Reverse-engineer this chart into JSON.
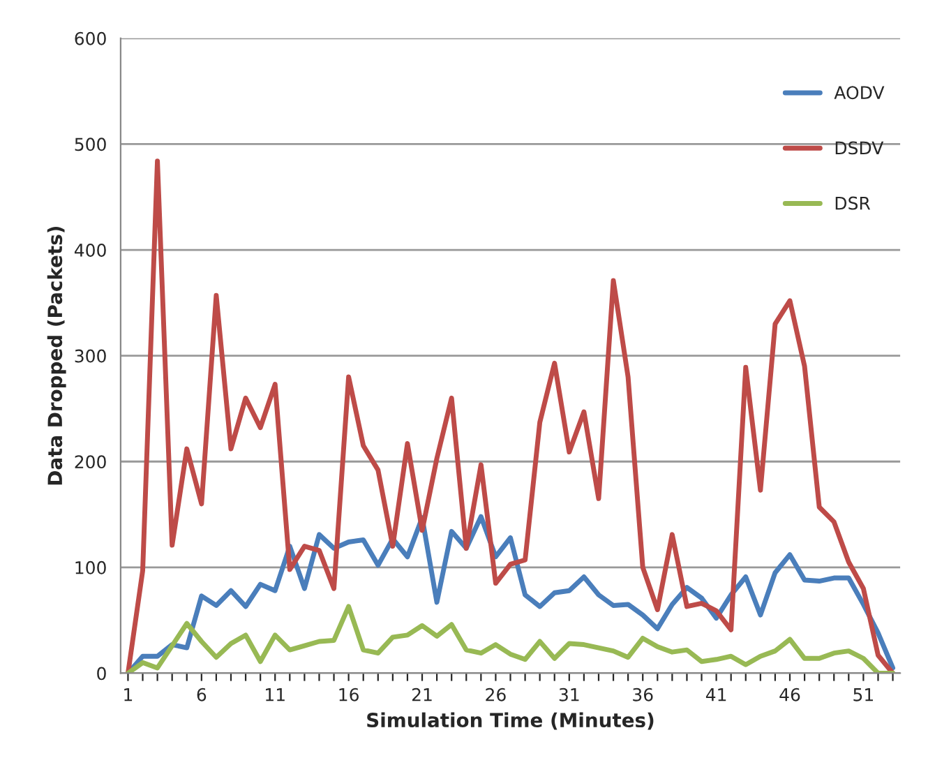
{
  "chart_data": {
    "type": "line",
    "xlabel": "Simulation Time (Minutes)",
    "ylabel": "Data Dropped (Packets)",
    "categories": [
      "1",
      null,
      null,
      null,
      null,
      "6",
      null,
      null,
      null,
      null,
      "11",
      null,
      null,
      null,
      null,
      "16",
      null,
      null,
      null,
      null,
      "21",
      null,
      null,
      null,
      null,
      "26",
      null,
      null,
      null,
      null,
      "31",
      null,
      null,
      null,
      null,
      "36",
      null,
      null,
      null,
      null,
      "41",
      null,
      null,
      null,
      null,
      "46",
      null,
      null,
      null,
      null,
      "51",
      null,
      null
    ],
    "ylim": [
      0,
      600
    ],
    "yticks": [
      0,
      100,
      200,
      300,
      400,
      500,
      600
    ],
    "grid": "y",
    "legend": "top right",
    "marker": "none",
    "line_style": "solid",
    "series": [
      {
        "name": "AODV",
        "color": "#4a7ebb",
        "values": [
          0,
          16,
          16,
          27,
          24,
          73,
          64,
          78,
          63,
          84,
          78,
          120,
          80,
          131,
          118,
          124,
          126,
          102,
          127,
          110,
          147,
          67,
          134,
          118,
          148,
          110,
          128,
          74,
          63,
          76,
          78,
          91,
          74,
          64,
          65,
          55,
          42,
          65,
          81,
          71,
          52,
          74,
          91,
          55,
          95,
          112,
          88,
          87,
          90,
          90,
          65,
          38,
          5
        ]
      },
      {
        "name": "DSDV",
        "color": "#be4b48",
        "values": [
          0,
          97,
          484,
          121,
          212,
          160,
          357,
          212,
          260,
          232,
          273,
          98,
          120,
          116,
          80,
          280,
          215,
          192,
          120,
          217,
          135,
          203,
          260,
          118,
          197,
          85,
          103,
          107,
          237,
          293,
          209,
          247,
          165,
          371,
          280,
          100,
          60,
          131,
          63,
          66,
          59,
          41,
          289,
          173,
          330,
          352,
          290,
          157,
          143,
          105,
          80,
          17,
          0
        ]
      },
      {
        "name": "DSR",
        "color": "#98b954",
        "values": [
          0,
          10,
          5,
          26,
          47,
          30,
          15,
          28,
          36,
          11,
          36,
          22,
          26,
          30,
          31,
          63,
          22,
          19,
          34,
          36,
          45,
          35,
          46,
          22,
          19,
          27,
          18,
          13,
          30,
          14,
          28,
          27,
          24,
          21,
          15,
          33,
          25,
          20,
          22,
          11,
          13,
          16,
          8,
          16,
          21,
          32,
          14,
          14,
          19,
          21,
          14,
          0,
          0
        ]
      }
    ]
  }
}
